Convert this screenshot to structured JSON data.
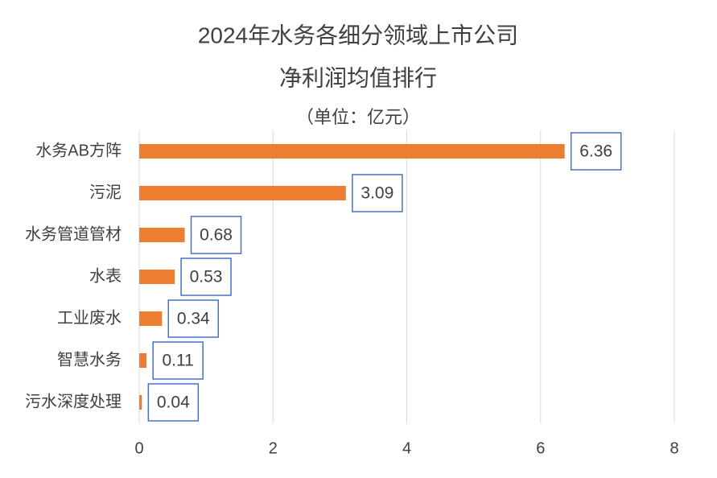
{
  "chart_data": {
    "type": "hbar",
    "title": [
      "2024年水务各细分领域上市公司",
      "净利润均值排行"
    ],
    "subtitle": "（单位：亿元）",
    "categories": [
      "水务AB方阵",
      "污泥",
      "水务管道管材",
      "水表",
      "工业废水",
      "智慧水务",
      "污水深度处理"
    ],
    "values": [
      6.36,
      3.09,
      0.68,
      0.53,
      0.34,
      0.11,
      0.04
    ],
    "value_labels": [
      "6.36",
      "3.09",
      "0.68",
      "0.53",
      "0.34",
      "0.11",
      "0.04"
    ],
    "color": "#ed7d31",
    "label_border": "#4472c4",
    "xlim": [
      0,
      8
    ],
    "xticks": [
      0,
      2,
      4,
      6,
      8
    ],
    "grid": true
  }
}
